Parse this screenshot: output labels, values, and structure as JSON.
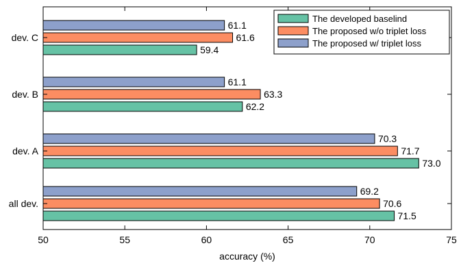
{
  "chart_data": {
    "type": "bar",
    "orientation": "horizontal",
    "categories": [
      "dev. C",
      "dev. B",
      "dev. A",
      "all dev."
    ],
    "series": [
      {
        "name": "The proposed w/ triplet loss",
        "color": "#8da0cb",
        "values": [
          61.1,
          61.1,
          70.3,
          69.2
        ]
      },
      {
        "name": "The proposed w/o triplet loss",
        "color": "#fc8d62",
        "values": [
          61.6,
          63.3,
          71.7,
          70.6
        ]
      },
      {
        "name": "The developed baselind",
        "color": "#66c2a5",
        "values": [
          59.4,
          62.2,
          73.0,
          71.5
        ]
      }
    ],
    "value_labels": [
      [
        "61.1",
        "61.6",
        "59.4"
      ],
      [
        "61.1",
        "63.3",
        "62.2"
      ],
      [
        "70.3",
        "71.7",
        "73.0"
      ],
      [
        "69.2",
        "70.6",
        "71.5"
      ]
    ],
    "xlabel": "accuracy (%)",
    "ylabel": "",
    "title": "",
    "xlim": [
      50,
      75
    ],
    "xticks": [
      "50",
      "55",
      "60",
      "65",
      "70",
      "75"
    ],
    "legend_order": [
      "The developed baselind",
      "The proposed w/o triplet loss",
      "The proposed w/ triplet loss"
    ],
    "legend_position": "top-right",
    "grid": false
  }
}
